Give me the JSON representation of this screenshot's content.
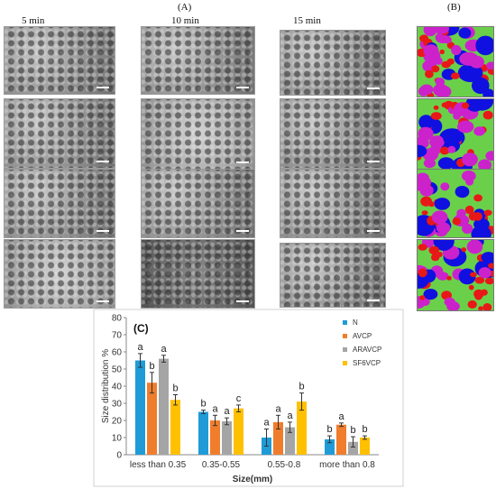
{
  "header": {
    "panel_a_label": "(A)",
    "panel_b_label": "(B)",
    "time_labels": [
      "5 min",
      "10 min",
      "15 min"
    ]
  },
  "segmentation_colors": {
    "background": "#6ad04a",
    "large": "#1010e0",
    "medium": "#cc22cc",
    "small": "#e81818"
  },
  "chart_data": {
    "type": "bar",
    "panel_label": "(C)",
    "xlabel": "Size(mm)",
    "ylabel": "Size distribution %",
    "ylim": [
      0,
      80
    ],
    "yticks": [
      0,
      10,
      20,
      30,
      40,
      50,
      60,
      70,
      80
    ],
    "grid": false,
    "legend_position": "right",
    "categories": [
      "less than 0.35",
      "0.35-0.55",
      "0.55-0.8",
      "more than 0.8"
    ],
    "series": [
      {
        "name": "N",
        "color": "#1f9bd7",
        "values": [
          55,
          25,
          10,
          9
        ],
        "errors": [
          4,
          1,
          5,
          2
        ],
        "letters": [
          "a",
          "b",
          "a",
          "b"
        ]
      },
      {
        "name": "AVCP",
        "color": "#f07d2c",
        "values": [
          42,
          20,
          19,
          17.5
        ],
        "errors": [
          6,
          3,
          4,
          1
        ],
        "letters": [
          "b",
          "a",
          "a",
          "a"
        ]
      },
      {
        "name": "ARAVCP",
        "color": "#a5a5a5",
        "values": [
          56,
          19.5,
          16,
          7.5
        ],
        "errors": [
          2,
          2,
          3,
          3
        ],
        "letters": [
          "a",
          "a",
          "a",
          "b"
        ]
      },
      {
        "name": "SF6VCP",
        "color": "#ffc000",
        "values": [
          32,
          27,
          31,
          10
        ],
        "errors": [
          3,
          2,
          5,
          1
        ],
        "letters": [
          "b",
          "c",
          "b",
          "b"
        ]
      }
    ]
  }
}
